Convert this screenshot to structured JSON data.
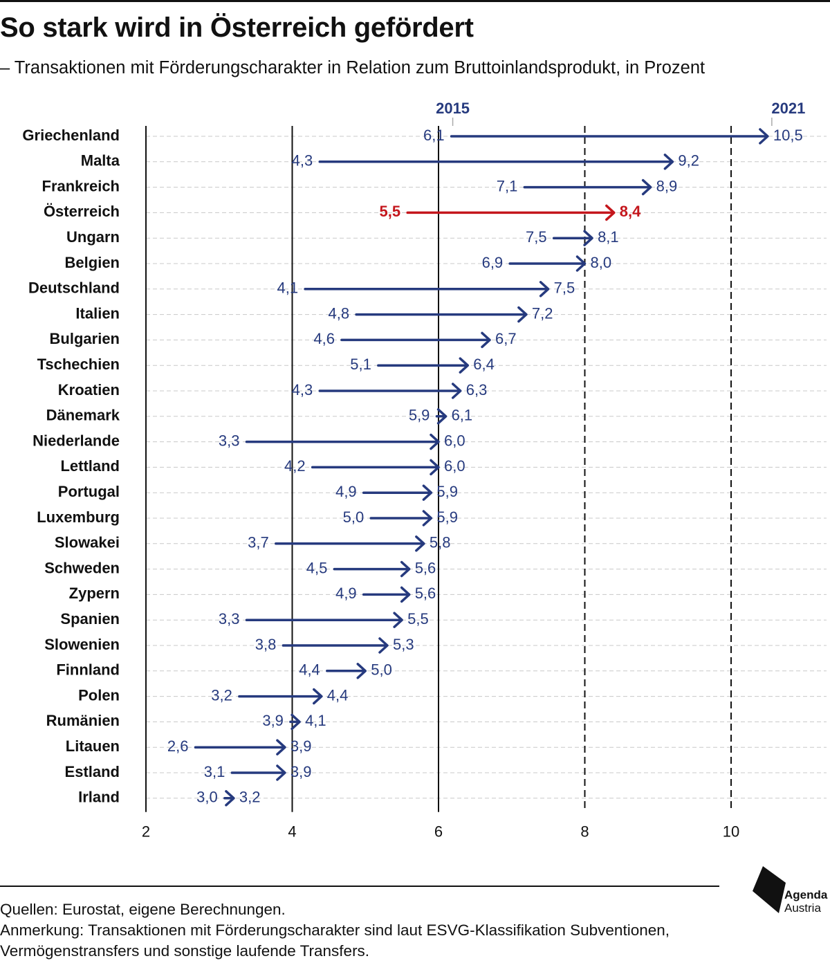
{
  "header": {
    "title": "So stark wird in Österreich gefördert",
    "subtitle": "– Transaktionen mit Förderungscharakter in Relation zum Bruttoinlandsprodukt, in Prozent"
  },
  "footer": {
    "sources": "Quellen: Eurostat, eigene Berechnungen.",
    "note_line1": "Anmerkung: Transaktionen mit Förderungscharakter sind laut ESVG-Klassifikation Subventionen,",
    "note_line2": "Vermögenstransfers und sonstige laufende Transfers."
  },
  "logo": {
    "line1": "Agenda",
    "line2": "Austria",
    "icon": "agenda-austria-logo"
  },
  "colors": {
    "series": "#263a7e",
    "highlight": "#c4161c",
    "gridline": "#111111",
    "rowline": "#c8c8c8"
  },
  "chart_data": {
    "type": "arrow-dumbbell",
    "series_names": [
      "2015",
      "2021"
    ],
    "xlim": [
      2,
      11
    ],
    "xticks": [
      2,
      4,
      6,
      8,
      10
    ],
    "xtick_labels": [
      "2",
      "4",
      "6",
      "8",
      "10"
    ],
    "highlight": "Österreich",
    "rows": [
      {
        "country": "Griechenland",
        "v2015": 6.1,
        "v2021": 10.5,
        "l2015": "6,1",
        "l2021": "10,5"
      },
      {
        "country": "Malta",
        "v2015": 4.3,
        "v2021": 9.2,
        "l2015": "4,3",
        "l2021": "9,2"
      },
      {
        "country": "Frankreich",
        "v2015": 7.1,
        "v2021": 8.9,
        "l2015": "7,1",
        "l2021": "8,9"
      },
      {
        "country": "Österreich",
        "v2015": 5.5,
        "v2021": 8.4,
        "l2015": "5,5",
        "l2021": "8,4"
      },
      {
        "country": "Ungarn",
        "v2015": 7.5,
        "v2021": 8.1,
        "l2015": "7,5",
        "l2021": "8,1"
      },
      {
        "country": "Belgien",
        "v2015": 6.9,
        "v2021": 8.0,
        "l2015": "6,9",
        "l2021": "8,0"
      },
      {
        "country": "Deutschland",
        "v2015": 4.1,
        "v2021": 7.5,
        "l2015": "4,1",
        "l2021": "7,5"
      },
      {
        "country": "Italien",
        "v2015": 4.8,
        "v2021": 7.2,
        "l2015": "4,8",
        "l2021": "7,2"
      },
      {
        "country": "Bulgarien",
        "v2015": 4.6,
        "v2021": 6.7,
        "l2015": "4,6",
        "l2021": "6,7"
      },
      {
        "country": "Tschechien",
        "v2015": 5.1,
        "v2021": 6.4,
        "l2015": "5,1",
        "l2021": "6,4"
      },
      {
        "country": "Kroatien",
        "v2015": 4.3,
        "v2021": 6.3,
        "l2015": "4,3",
        "l2021": "6,3"
      },
      {
        "country": "Dänemark",
        "v2015": 5.9,
        "v2021": 6.1,
        "l2015": "5,9",
        "l2021": "6,1"
      },
      {
        "country": "Niederlande",
        "v2015": 3.3,
        "v2021": 6.0,
        "l2015": "3,3",
        "l2021": "6,0"
      },
      {
        "country": "Lettland",
        "v2015": 4.2,
        "v2021": 6.0,
        "l2015": "4,2",
        "l2021": "6,0"
      },
      {
        "country": "Portugal",
        "v2015": 4.9,
        "v2021": 5.9,
        "l2015": "4,9",
        "l2021": "5,9"
      },
      {
        "country": "Luxemburg",
        "v2015": 5.0,
        "v2021": 5.9,
        "l2015": "5,0",
        "l2021": "5,9"
      },
      {
        "country": "Slowakei",
        "v2015": 3.7,
        "v2021": 5.8,
        "l2015": "3,7",
        "l2021": "5,8"
      },
      {
        "country": "Schweden",
        "v2015": 4.5,
        "v2021": 5.6,
        "l2015": "4,5",
        "l2021": "5,6"
      },
      {
        "country": "Zypern",
        "v2015": 4.9,
        "v2021": 5.6,
        "l2015": "4,9",
        "l2021": "5,6"
      },
      {
        "country": "Spanien",
        "v2015": 3.3,
        "v2021": 5.5,
        "l2015": "3,3",
        "l2021": "5,5"
      },
      {
        "country": "Slowenien",
        "v2015": 3.8,
        "v2021": 5.3,
        "l2015": "3,8",
        "l2021": "5,3"
      },
      {
        "country": "Finnland",
        "v2015": 4.4,
        "v2021": 5.0,
        "l2015": "4,4",
        "l2021": "5,0"
      },
      {
        "country": "Polen",
        "v2015": 3.2,
        "v2021": 4.4,
        "l2015": "3,2",
        "l2021": "4,4"
      },
      {
        "country": "Rumänien",
        "v2015": 3.9,
        "v2021": 4.1,
        "l2015": "3,9",
        "l2021": "4,1"
      },
      {
        "country": "Litauen",
        "v2015": 2.6,
        "v2021": 3.9,
        "l2015": "2,6",
        "l2021": "3,9"
      },
      {
        "country": "Estland",
        "v2015": 3.1,
        "v2021": 3.9,
        "l2015": "3,1",
        "l2021": "3,9"
      },
      {
        "country": "Irland",
        "v2015": 3.0,
        "v2021": 3.2,
        "l2015": "3,0",
        "l2021": "3,2"
      }
    ]
  }
}
